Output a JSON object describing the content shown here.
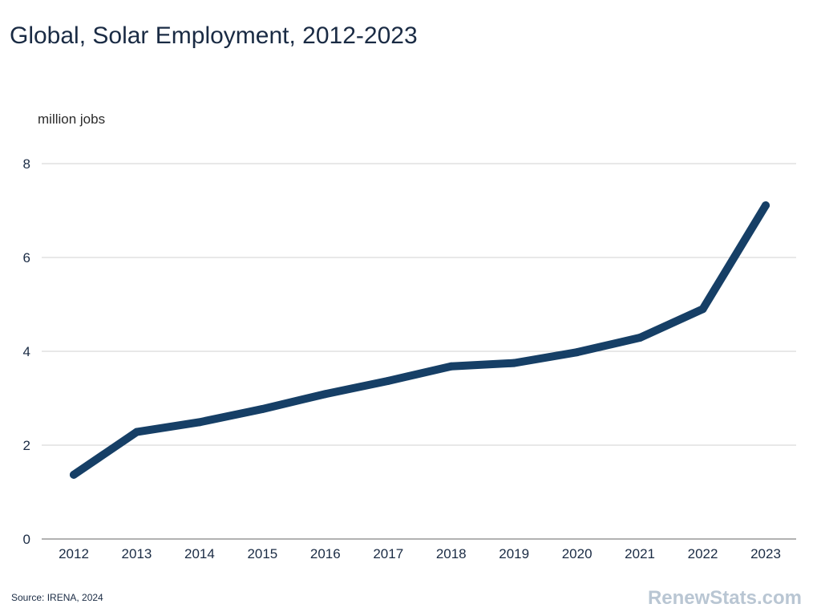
{
  "title": "Global, Solar Employment, 2012-2023",
  "source": "Source: IRENA, 2024",
  "brand": "RenewStats.com",
  "chart_data": {
    "type": "line",
    "title": "Global, Solar Employment, 2012-2023",
    "ylabel": "million jobs",
    "xlabel": "",
    "categories": [
      "2012",
      "2013",
      "2014",
      "2015",
      "2016",
      "2017",
      "2018",
      "2019",
      "2020",
      "2021",
      "2022",
      "2023"
    ],
    "values": [
      1.37,
      2.28,
      2.49,
      2.77,
      3.09,
      3.37,
      3.68,
      3.75,
      3.98,
      4.29,
      4.9,
      7.11
    ],
    "ylim": [
      0,
      8
    ],
    "yticks": [
      "0",
      "2",
      "4",
      "6",
      "8"
    ],
    "grid": true,
    "line_color": "#163f66",
    "grid_color": "#d0d0d0",
    "axis_color": "#999999"
  }
}
